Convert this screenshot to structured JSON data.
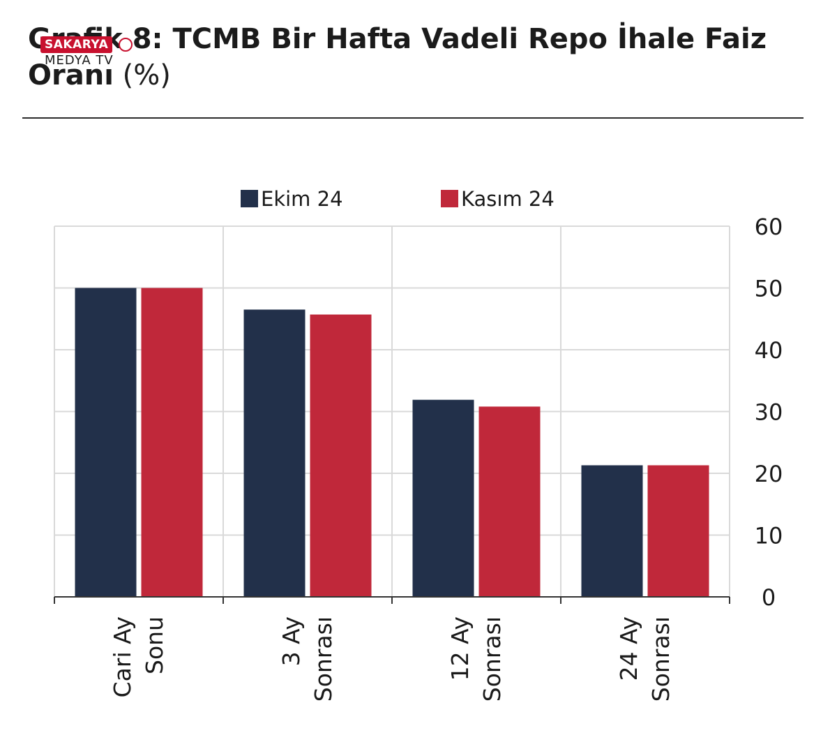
{
  "title": {
    "line1": "Grafik 8: TCMB Bir Hafta Vadeli Repo İhale Faiz",
    "line2_bold": "Oranı",
    "line2_normal": "(%)"
  },
  "watermark": {
    "top": "SAKARYA",
    "bottom": "MEDYA TV"
  },
  "colors": {
    "ekim": "#22304a",
    "kasim": "#c0283a",
    "grid": "#d9d9d9",
    "axis": "#333333"
  },
  "chart_data": {
    "type": "bar",
    "title": "Grafik 8: TCMB Bir Hafta Vadeli Repo İhale Faiz Oranı (%)",
    "categories": [
      [
        "Cari Ay",
        "Sonu"
      ],
      [
        "3 Ay",
        "Sonrası"
      ],
      [
        "12 Ay",
        "Sonrası"
      ],
      [
        "24 Ay",
        "Sonrası"
      ]
    ],
    "series": [
      {
        "name": "Ekim 24",
        "color": "#22304a",
        "values": [
          50,
          46.5,
          31.9,
          21.3
        ]
      },
      {
        "name": "Kasım 24",
        "color": "#c0283a",
        "values": [
          50,
          45.7,
          30.8,
          21.3
        ]
      }
    ],
    "ylim": [
      0,
      60
    ],
    "yticks": [
      0,
      10,
      20,
      30,
      40,
      50,
      60
    ],
    "y_axis_side": "right",
    "grid": true,
    "legend_position": "top-center"
  }
}
